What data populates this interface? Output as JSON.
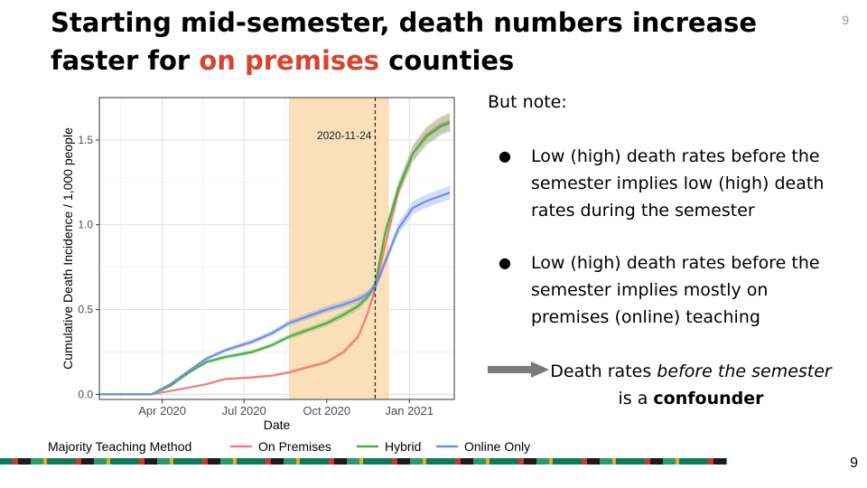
{
  "slide": {
    "title_part1": "Starting mid-semester, death numbers increase faster for ",
    "title_highlight": "on premises",
    "title_part2": " counties",
    "page_number_top": "9",
    "page_number_bottom": "9",
    "highlight_color": "#d9432f"
  },
  "notes": {
    "heading": "But note:",
    "bullets": [
      "Low (high) death rates before the semester implies low (high) death rates during the semester",
      "Low (high) death rates before the semester implies mostly on premises (online) teaching"
    ],
    "conclusion_prefix": "Death rates ",
    "conclusion_italic": "before the semester",
    "conclusion_mid": " is a ",
    "conclusion_bold": "confounder",
    "arrow_icon": "right-arrow-icon"
  },
  "chart_data": {
    "type": "line",
    "xlabel": "Date",
    "ylabel": "Cumulative Death Incidence / 1,000 people",
    "x_ticks": [
      "Apr 2020",
      "Jul 2020",
      "Oct 2020",
      "Jan 2021"
    ],
    "y_ticks": [
      "0.0",
      "0.5",
      "1.0",
      "1.5"
    ],
    "xlim": [
      "2020-01-22",
      "2021-02-20"
    ],
    "ylim": [
      -0.03,
      1.75
    ],
    "grid": true,
    "shaded_region": {
      "from": "2020-08-20",
      "to": "2020-12-09",
      "color": "#f9dfb8"
    },
    "vline": {
      "x": "2020-11-24",
      "label": "2020-11-24"
    },
    "legend": {
      "title": "Majority Teaching Method",
      "position": "bottom"
    },
    "series": [
      {
        "name": "On Premises",
        "color": "#f08080",
        "points": [
          [
            "2020-01-22",
            0
          ],
          [
            "2020-03-20",
            0.0
          ],
          [
            "2020-04-10",
            0.02
          ],
          [
            "2020-05-01",
            0.04
          ],
          [
            "2020-05-20",
            0.06
          ],
          [
            "2020-06-10",
            0.09
          ],
          [
            "2020-07-10",
            0.1
          ],
          [
            "2020-08-01",
            0.11
          ],
          [
            "2020-08-20",
            0.13
          ],
          [
            "2020-09-10",
            0.16
          ],
          [
            "2020-10-01",
            0.19
          ],
          [
            "2020-10-20",
            0.25
          ],
          [
            "2020-11-05",
            0.34
          ],
          [
            "2020-11-15",
            0.47
          ],
          [
            "2020-11-24",
            0.62
          ],
          [
            "2020-12-05",
            0.88
          ],
          [
            "2020-12-20",
            1.2
          ],
          [
            "2021-01-05",
            1.42
          ],
          [
            "2021-01-20",
            1.53
          ],
          [
            "2021-02-05",
            1.59
          ],
          [
            "2021-02-15",
            1.61
          ]
        ]
      },
      {
        "name": "Hybrid",
        "color": "#4daf4a",
        "points": [
          [
            "2020-01-22",
            0
          ],
          [
            "2020-03-20",
            0.0
          ],
          [
            "2020-04-10",
            0.05
          ],
          [
            "2020-05-01",
            0.13
          ],
          [
            "2020-05-20",
            0.19
          ],
          [
            "2020-06-10",
            0.22
          ],
          [
            "2020-07-10",
            0.25
          ],
          [
            "2020-08-01",
            0.29
          ],
          [
            "2020-08-20",
            0.34
          ],
          [
            "2020-09-10",
            0.38
          ],
          [
            "2020-10-01",
            0.42
          ],
          [
            "2020-10-20",
            0.47
          ],
          [
            "2020-11-05",
            0.52
          ],
          [
            "2020-11-15",
            0.57
          ],
          [
            "2020-11-24",
            0.65
          ],
          [
            "2020-12-05",
            0.95
          ],
          [
            "2020-12-20",
            1.22
          ],
          [
            "2021-01-05",
            1.42
          ],
          [
            "2021-01-20",
            1.52
          ],
          [
            "2021-02-05",
            1.58
          ],
          [
            "2021-02-15",
            1.6
          ]
        ]
      },
      {
        "name": "Online Only",
        "color": "#6d8fe6",
        "points": [
          [
            "2020-01-22",
            0
          ],
          [
            "2020-03-20",
            0.0
          ],
          [
            "2020-04-10",
            0.06
          ],
          [
            "2020-05-01",
            0.14
          ],
          [
            "2020-05-20",
            0.21
          ],
          [
            "2020-06-10",
            0.26
          ],
          [
            "2020-07-10",
            0.31
          ],
          [
            "2020-08-01",
            0.36
          ],
          [
            "2020-08-20",
            0.42
          ],
          [
            "2020-09-10",
            0.46
          ],
          [
            "2020-10-01",
            0.5
          ],
          [
            "2020-10-20",
            0.53
          ],
          [
            "2020-11-05",
            0.56
          ],
          [
            "2020-11-15",
            0.59
          ],
          [
            "2020-11-24",
            0.63
          ],
          [
            "2020-12-05",
            0.78
          ],
          [
            "2020-12-20",
            0.98
          ],
          [
            "2021-01-05",
            1.1
          ],
          [
            "2021-01-20",
            1.14
          ],
          [
            "2021-02-05",
            1.17
          ],
          [
            "2021-02-15",
            1.19
          ]
        ]
      }
    ]
  }
}
